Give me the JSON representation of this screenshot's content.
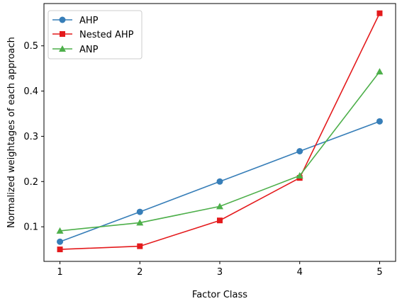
{
  "chart_data": {
    "type": "line",
    "title": "",
    "xlabel": "Factor Class",
    "ylabel": "Normalized weightages of each approach",
    "x": [
      1,
      2,
      3,
      4,
      5
    ],
    "x_ticks": [
      "1",
      "2",
      "3",
      "4",
      "5"
    ],
    "y_ticks": [
      0.1,
      0.2,
      0.3,
      0.4,
      0.5
    ],
    "y_tick_labels": [
      "0.1",
      "0.2",
      "0.3",
      "0.4",
      "0.5"
    ],
    "xlim": [
      0.8,
      5.2
    ],
    "ylim": [
      0.0235,
      0.5935
    ],
    "grid": false,
    "legend_position": "top-left",
    "series": [
      {
        "name": "AHP",
        "values": [
          0.067,
          0.133,
          0.2,
          0.267,
          0.333
        ],
        "color": "#377eb8",
        "marker": "circle"
      },
      {
        "name": "Nested AHP",
        "values": [
          0.05,
          0.057,
          0.114,
          0.208,
          0.572
        ],
        "color": "#e41a1c",
        "marker": "square"
      },
      {
        "name": "ANP",
        "values": [
          0.091,
          0.109,
          0.145,
          0.213,
          0.443
        ],
        "color": "#4daf4a",
        "marker": "triangle"
      }
    ]
  }
}
